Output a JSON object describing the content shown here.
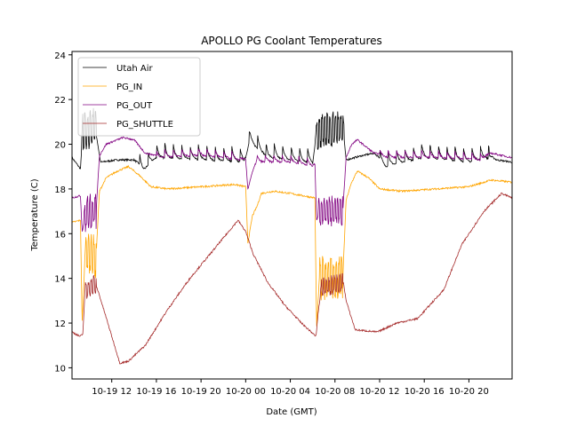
{
  "chart_data": {
    "type": "line",
    "title": "APOLLO PG Coolant Temperatures",
    "xlabel": "Date (GMT)",
    "ylabel": "Temperature (C)",
    "x_units": "hours since 10-19 00:00 GMT",
    "xlim": [
      8.44,
      47.87
    ],
    "ylim": [
      9.5,
      24.15
    ],
    "yticks": [
      10,
      12,
      14,
      16,
      18,
      20,
      22,
      24
    ],
    "xticks": [
      {
        "x": 12,
        "label": "10-19 12"
      },
      {
        "x": 16,
        "label": "10-19 16"
      },
      {
        "x": 20,
        "label": "10-19 20"
      },
      {
        "x": 24,
        "label": "10-20 00"
      },
      {
        "x": 28,
        "label": "10-20 04"
      },
      {
        "x": 32,
        "label": "10-20 08"
      },
      {
        "x": 36,
        "label": "10-20 12"
      },
      {
        "x": 40,
        "label": "10-20 16"
      },
      {
        "x": 44,
        "label": "10-20 20"
      }
    ],
    "grid": false,
    "legend_position": "top-left",
    "series": [
      {
        "name": "Utah Air",
        "color": "#000000",
        "points": [
          [
            8.44,
            19.4
          ],
          [
            9.2,
            18.9
          ],
          [
            9.4,
            20.5
          ],
          [
            10.5,
            20.8
          ],
          [
            11.0,
            19.2
          ],
          [
            12.5,
            19.3
          ],
          [
            14.0,
            19.3
          ],
          [
            14.8,
            19.0
          ],
          [
            16,
            19.6
          ],
          [
            20,
            19.5
          ],
          [
            24,
            19.4
          ],
          [
            24.4,
            20.3
          ],
          [
            26,
            19.6
          ],
          [
            29.5,
            19.4
          ],
          [
            30.0,
            19.3
          ],
          [
            30.3,
            20.5
          ],
          [
            32.7,
            20.8
          ],
          [
            33.0,
            19.3
          ],
          [
            34.5,
            19.5
          ],
          [
            35.5,
            19.6
          ],
          [
            36.5,
            19.2
          ],
          [
            40,
            19.6
          ],
          [
            44,
            19.4
          ],
          [
            45.5,
            19.6
          ],
          [
            46.5,
            19.3
          ],
          [
            47.87,
            19.2
          ]
        ],
        "oscillate": [
          [
            9.3,
            10.6,
            1.8
          ],
          [
            30.3,
            32.8,
            1.6
          ]
        ],
        "sawtooth": [
          [
            14.5,
            23.9,
            0.7
          ],
          [
            24.3,
            30.2,
            0.7
          ],
          [
            36.0,
            45.8,
            0.7
          ]
        ]
      },
      {
        "name": "PG_IN",
        "color": "#FFA500",
        "points": [
          [
            8.44,
            16.5
          ],
          [
            9.2,
            16.6
          ],
          [
            9.35,
            12.0
          ],
          [
            9.6,
            15.0
          ],
          [
            10.6,
            15.0
          ],
          [
            10.9,
            17.9
          ],
          [
            11.5,
            18.5
          ],
          [
            12.5,
            18.8
          ],
          [
            13.5,
            19.0
          ],
          [
            14.5,
            18.6
          ],
          [
            15.5,
            18.1
          ],
          [
            17,
            18.0
          ],
          [
            20,
            18.1
          ],
          [
            23,
            18.2
          ],
          [
            24.0,
            18.1
          ],
          [
            24.2,
            15.6
          ],
          [
            24.6,
            16.8
          ],
          [
            25.0,
            17.2
          ],
          [
            25.4,
            17.8
          ],
          [
            26.5,
            17.9
          ],
          [
            28,
            17.8
          ],
          [
            30.2,
            17.6
          ],
          [
            30.35,
            11.8
          ],
          [
            30.6,
            14.0
          ],
          [
            32.7,
            14.0
          ],
          [
            33.0,
            17.5
          ],
          [
            33.5,
            18.3
          ],
          [
            34.0,
            18.8
          ],
          [
            35.0,
            18.5
          ],
          [
            36.0,
            18.0
          ],
          [
            38,
            17.9
          ],
          [
            41,
            18.0
          ],
          [
            44,
            18.1
          ],
          [
            46,
            18.4
          ],
          [
            47.87,
            18.3
          ]
        ],
        "oscillate": [
          [
            9.6,
            10.6,
            2.0
          ],
          [
            30.6,
            32.7,
            2.0
          ]
        ]
      },
      {
        "name": "PG_OUT",
        "color": "#800080",
        "points": [
          [
            8.44,
            17.6
          ],
          [
            9.2,
            17.7
          ],
          [
            9.35,
            16.1
          ],
          [
            9.7,
            17.0
          ],
          [
            10.6,
            17.0
          ],
          [
            10.9,
            19.5
          ],
          [
            11.5,
            20.0
          ],
          [
            13.0,
            20.3
          ],
          [
            14.0,
            20.2
          ],
          [
            15.0,
            19.6
          ],
          [
            16,
            19.5
          ],
          [
            20,
            19.6
          ],
          [
            23.5,
            19.4
          ],
          [
            24.0,
            19.3
          ],
          [
            24.2,
            18.0
          ],
          [
            24.5,
            18.6
          ],
          [
            25,
            19.3
          ],
          [
            28,
            19.3
          ],
          [
            30.2,
            19.1
          ],
          [
            30.35,
            16.6
          ],
          [
            30.6,
            17.0
          ],
          [
            32.7,
            17.0
          ],
          [
            33.0,
            19.4
          ],
          [
            33.5,
            20.0
          ],
          [
            34.0,
            20.2
          ],
          [
            35.5,
            19.6
          ],
          [
            37,
            19.5
          ],
          [
            41,
            19.5
          ],
          [
            45,
            19.4
          ],
          [
            46,
            19.6
          ],
          [
            47.87,
            19.4
          ]
        ],
        "oscillate": [
          [
            9.5,
            10.6,
            1.6
          ],
          [
            30.5,
            32.7,
            1.4
          ]
        ],
        "sawtooth": [
          [
            16.0,
            23.5,
            0.35
          ],
          [
            25.0,
            30.0,
            0.35
          ],
          [
            36.0,
            45.5,
            0.35
          ]
        ]
      },
      {
        "name": "PG_SHUTTLE",
        "color": "#A52A2A",
        "points": [
          [
            8.44,
            11.6
          ],
          [
            9.16,
            11.4
          ],
          [
            9.4,
            11.5
          ],
          [
            9.6,
            13.4
          ],
          [
            10.5,
            13.8
          ],
          [
            10.8,
            13.4
          ],
          [
            12.73,
            10.2
          ],
          [
            13.5,
            10.3
          ],
          [
            15,
            11.0
          ],
          [
            17,
            12.6
          ],
          [
            19,
            14.0
          ],
          [
            21,
            15.2
          ],
          [
            23.31,
            16.6
          ],
          [
            24.0,
            16.1
          ],
          [
            24.66,
            15.1
          ],
          [
            26,
            13.8
          ],
          [
            27.5,
            12.8
          ],
          [
            29,
            12.0
          ],
          [
            30.3,
            11.4
          ],
          [
            30.5,
            12.5
          ],
          [
            30.8,
            13.6
          ],
          [
            32.77,
            13.8
          ],
          [
            33.0,
            13.0
          ],
          [
            33.81,
            11.7
          ],
          [
            35.8,
            11.6
          ],
          [
            37.5,
            12.0
          ],
          [
            39.4,
            12.2
          ],
          [
            41.76,
            13.5
          ],
          [
            43.35,
            15.5
          ],
          [
            45.34,
            17.0
          ],
          [
            46.93,
            17.8
          ],
          [
            47.87,
            17.6
          ]
        ],
        "oscillate": [
          [
            9.6,
            10.6,
            0.9
          ],
          [
            30.7,
            32.7,
            0.9
          ]
        ]
      }
    ]
  }
}
